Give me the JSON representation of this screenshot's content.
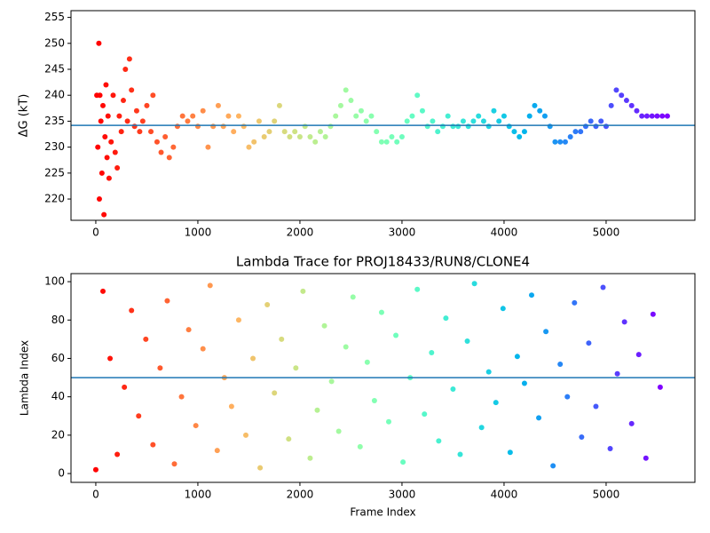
{
  "chart_data": [
    {
      "type": "scatter",
      "ylabel": "ΔG (kT)",
      "colormap": "rainbow_r",
      "hline": 234.2,
      "hline_color": "#1f77b4",
      "xlim": [
        -243,
        5870
      ],
      "ylim": [
        215.9,
        256.3
      ],
      "xticks": [
        0,
        1000,
        2000,
        3000,
        4000,
        5000
      ],
      "yticks": [
        220,
        225,
        230,
        235,
        240,
        245,
        250,
        255
      ],
      "x": [
        10,
        20,
        30,
        35,
        40,
        50,
        60,
        70,
        80,
        90,
        100,
        110,
        120,
        130,
        150,
        170,
        190,
        210,
        230,
        250,
        270,
        290,
        310,
        330,
        350,
        380,
        400,
        430,
        460,
        500,
        540,
        560,
        600,
        640,
        680,
        720,
        760,
        800,
        850,
        900,
        950,
        1000,
        1050,
        1100,
        1150,
        1200,
        1250,
        1300,
        1350,
        1400,
        1450,
        1500,
        1550,
        1600,
        1650,
        1700,
        1750,
        1800,
        1850,
        1900,
        1950,
        2000,
        2050,
        2100,
        2150,
        2200,
        2250,
        2300,
        2350,
        2400,
        2450,
        2500,
        2550,
        2600,
        2650,
        2700,
        2750,
        2800,
        2850,
        2900,
        2950,
        3000,
        3050,
        3100,
        3150,
        3200,
        3250,
        3300,
        3350,
        3400,
        3450,
        3500,
        3550,
        3600,
        3650,
        3700,
        3750,
        3800,
        3850,
        3900,
        3950,
        4000,
        4050,
        4100,
        4150,
        4200,
        4250,
        4300,
        4350,
        4400,
        4450,
        4500,
        4550,
        4600,
        4650,
        4700,
        4750,
        4800,
        4850,
        4900,
        4950,
        5000,
        5050,
        5100,
        5150,
        5200,
        5250,
        5300,
        5350,
        5400,
        5450,
        5500,
        5550,
        5600
      ],
      "y": [
        240,
        230,
        250,
        220,
        240,
        235,
        225,
        238,
        217,
        232,
        242,
        228,
        236,
        224,
        231,
        240,
        229,
        226,
        236,
        233,
        239,
        245,
        235,
        247,
        241,
        234,
        237,
        233,
        235,
        238,
        233,
        240,
        231,
        229,
        232,
        228,
        230,
        234,
        236,
        235,
        236,
        234,
        237,
        230,
        234,
        238,
        234,
        236,
        233,
        236,
        234,
        230,
        231,
        235,
        232,
        233,
        235,
        238,
        233,
        232,
        233,
        232,
        234,
        232,
        231,
        233,
        232,
        234,
        236,
        238,
        241,
        239,
        236,
        237,
        235,
        236,
        233,
        231,
        231,
        232,
        231,
        232,
        235,
        236,
        240,
        237,
        234,
        235,
        233,
        234,
        236,
        234,
        234,
        235,
        234,
        235,
        236,
        235,
        234,
        237,
        235,
        236,
        234,
        233,
        232,
        233,
        236,
        238,
        237,
        236,
        234,
        231,
        231,
        231,
        232,
        233,
        233,
        234,
        235,
        234,
        235,
        234,
        238,
        241,
        240,
        239,
        238,
        237,
        236,
        236,
        236,
        236,
        236,
        236
      ]
    },
    {
      "type": "scatter",
      "title": "Lambda Trace for PROJ18433/RUN8/CLONE4",
      "xlabel": "Frame Index",
      "ylabel": "Lambda Index",
      "colormap": "rainbow_r",
      "hline": 50,
      "hline_color": "#1f77b4",
      "xlim": [
        -243,
        5870
      ],
      "ylim": [
        -4.6,
        104.2
      ],
      "xticks": [
        0,
        1000,
        2000,
        3000,
        4000,
        5000
      ],
      "yticks": [
        0,
        20,
        40,
        60,
        80,
        100
      ],
      "x": [
        0,
        70,
        140,
        210,
        280,
        350,
        420,
        490,
        560,
        630,
        700,
        770,
        840,
        910,
        980,
        1050,
        1120,
        1190,
        1260,
        1330,
        1400,
        1470,
        1540,
        1610,
        1680,
        1750,
        1820,
        1890,
        1960,
        2030,
        2100,
        2170,
        2240,
        2310,
        2380,
        2450,
        2520,
        2590,
        2660,
        2730,
        2800,
        2870,
        2940,
        3010,
        3080,
        3150,
        3220,
        3290,
        3360,
        3430,
        3500,
        3570,
        3640,
        3710,
        3780,
        3850,
        3920,
        3990,
        4060,
        4130,
        4200,
        4270,
        4340,
        4410,
        4480,
        4550,
        4620,
        4690,
        4760,
        4830,
        4900,
        4970,
        5040,
        5110,
        5180,
        5250,
        5320,
        5390,
        5460,
        5530
      ],
      "y": [
        2,
        95,
        60,
        10,
        45,
        85,
        30,
        70,
        15,
        55,
        90,
        5,
        40,
        75,
        25,
        65,
        98,
        12,
        50,
        35,
        80,
        20,
        60,
        3,
        88,
        42,
        70,
        18,
        55,
        95,
        8,
        33,
        77,
        48,
        22,
        66,
        92,
        14,
        58,
        38,
        84,
        27,
        72,
        6,
        50,
        96,
        31,
        63,
        17,
        81,
        44,
        10,
        69,
        99,
        24,
        53,
        37,
        86,
        11,
        61,
        47,
        93,
        29,
        74,
        4,
        57,
        40,
        89,
        19,
        68,
        35,
        97,
        13,
        52,
        79,
        26,
        62,
        8,
        83,
        45
      ]
    }
  ]
}
